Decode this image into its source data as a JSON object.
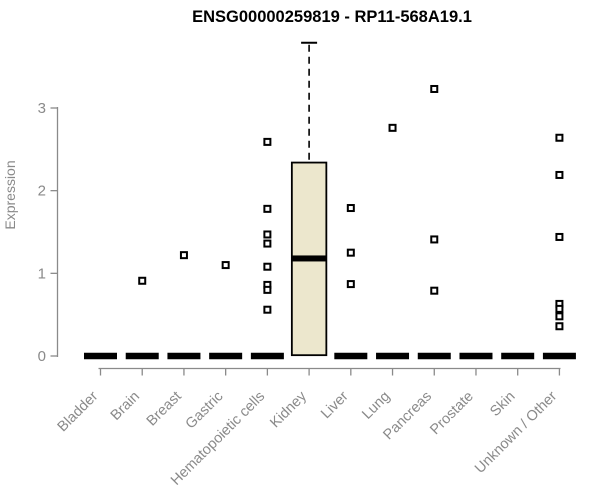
{
  "chart_data": {
    "type": "boxplot",
    "title": "ENSG00000259819 - RP11-568A19.1",
    "ylabel": "Expression",
    "xlabel": "",
    "yticks": [
      0,
      1,
      2,
      3
    ],
    "ylim": [
      0,
      3.85
    ],
    "grid": false,
    "legend": "none",
    "categories": [
      "Bladder",
      "Brain",
      "Breast",
      "Gastric",
      "Hematopoietic cells",
      "Kidney",
      "Liver",
      "Lung",
      "Pancreas",
      "Prostate",
      "Skin",
      "Unknown / Other"
    ],
    "series": [
      {
        "name": "Bladder",
        "q1": 0,
        "median": 0,
        "q3": 0,
        "whisker_low": 0,
        "whisker_high": 0,
        "outliers": []
      },
      {
        "name": "Brain",
        "q1": 0,
        "median": 0,
        "q3": 0,
        "whisker_low": 0,
        "whisker_high": 0,
        "outliers": [
          0.91
        ]
      },
      {
        "name": "Breast",
        "q1": 0,
        "median": 0,
        "q3": 0,
        "whisker_low": 0,
        "whisker_high": 0,
        "outliers": [
          1.22
        ]
      },
      {
        "name": "Gastric",
        "q1": 0,
        "median": 0,
        "q3": 0,
        "whisker_low": 0,
        "whisker_high": 0,
        "outliers": [
          1.1
        ]
      },
      {
        "name": "Hematopoietic cells",
        "q1": 0,
        "median": 0,
        "q3": 0,
        "whisker_low": 0,
        "whisker_high": 0,
        "outliers": [
          2.59,
          1.78,
          1.47,
          1.36,
          1.08,
          0.86,
          0.8,
          0.56
        ]
      },
      {
        "name": "Kidney",
        "q1": 0.01,
        "median": 1.18,
        "q3": 2.34,
        "whisker_low": 0.01,
        "whisker_high": 3.79,
        "outliers": []
      },
      {
        "name": "Liver",
        "q1": 0,
        "median": 0,
        "q3": 0,
        "whisker_low": 0,
        "whisker_high": 0,
        "outliers": [
          1.79,
          1.25,
          0.87
        ]
      },
      {
        "name": "Lung",
        "q1": 0,
        "median": 0,
        "q3": 0,
        "whisker_low": 0,
        "whisker_high": 0,
        "outliers": [
          2.76
        ]
      },
      {
        "name": "Pancreas",
        "q1": 0,
        "median": 0,
        "q3": 0,
        "whisker_low": 0,
        "whisker_high": 0,
        "outliers": [
          3.23,
          1.41,
          0.79
        ]
      },
      {
        "name": "Prostate",
        "q1": 0,
        "median": 0,
        "q3": 0,
        "whisker_low": 0,
        "whisker_high": 0,
        "outliers": []
      },
      {
        "name": "Skin",
        "q1": 0,
        "median": 0,
        "q3": 0,
        "whisker_low": 0,
        "whisker_high": 0,
        "outliers": []
      },
      {
        "name": "Unknown / Other",
        "q1": 0,
        "median": 0,
        "q3": 0,
        "whisker_low": 0,
        "whisker_high": 0,
        "outliers": [
          2.64,
          2.19,
          1.44,
          0.63,
          0.57,
          0.48,
          0.36
        ]
      }
    ],
    "colors": {
      "box_fill": "#ece7cd",
      "box_border": "#000000",
      "median": "#000000",
      "whisker": "#000000",
      "outlier_border": "#000000",
      "outlier_fill": "#ffffff",
      "axis": "#8a8a8a",
      "tick_label": "#8a8a8a",
      "title": "#000000"
    }
  }
}
